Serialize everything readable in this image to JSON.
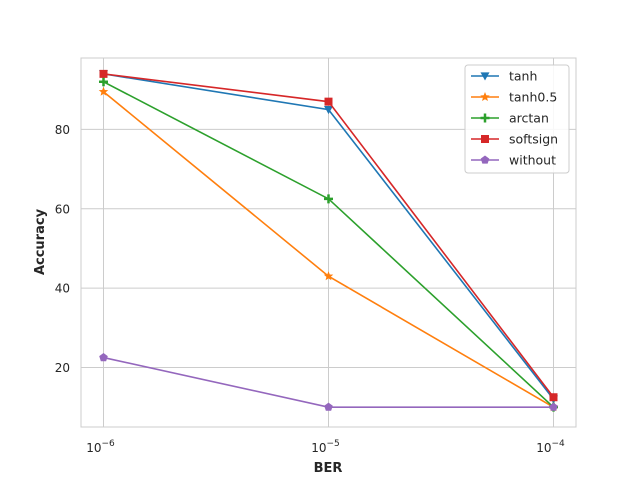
{
  "chart_data": {
    "type": "line",
    "xlabel": "BER",
    "ylabel": "Accuracy",
    "xscale": "log",
    "x": [
      1e-06,
      1e-05,
      0.0001
    ],
    "x_tick_labels": [
      {
        "base": "10",
        "exp": "−6"
      },
      {
        "base": "10",
        "exp": "−5"
      },
      {
        "base": "10",
        "exp": "−4"
      }
    ],
    "y_ticks": [
      20,
      40,
      60,
      80
    ],
    "y_tick_labels": [
      "20",
      "40",
      "60",
      "80"
    ],
    "ylim": [
      5,
      98
    ],
    "grid": true,
    "legend_position": "top-right",
    "series": [
      {
        "name": "tanh",
        "values": [
          94,
          85,
          12
        ],
        "color": "#1f77b4",
        "marker": "triangle-down"
      },
      {
        "name": "tanh0.5",
        "values": [
          89.5,
          43,
          10
        ],
        "color": "#ff7f0e",
        "marker": "star"
      },
      {
        "name": "arctan",
        "values": [
          92,
          62.5,
          10
        ],
        "color": "#2ca02c",
        "marker": "plus"
      },
      {
        "name": "softsign",
        "values": [
          94,
          87,
          12.5
        ],
        "color": "#d62728",
        "marker": "square"
      },
      {
        "name": "without",
        "values": [
          22.5,
          10,
          10
        ],
        "color": "#9467bd",
        "marker": "pentagon"
      }
    ]
  }
}
